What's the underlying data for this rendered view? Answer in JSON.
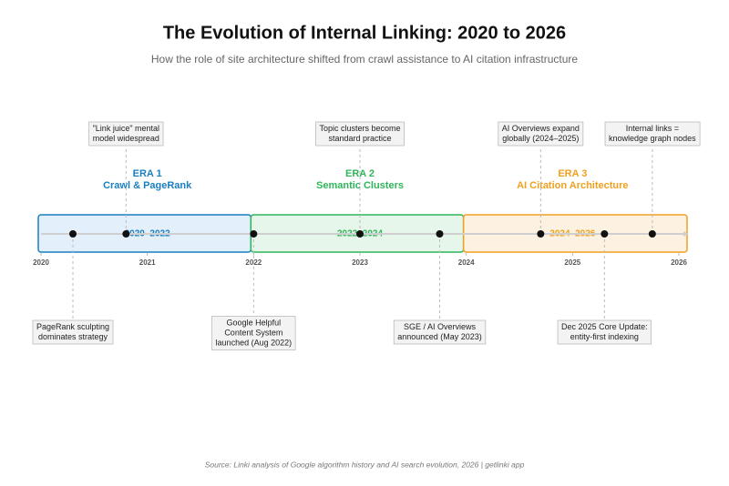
{
  "chart_data": {
    "type": "timeline",
    "title": "The Evolution of Internal Linking: 2020 to 2026",
    "subtitle": "How the role of site architecture shifted from crawl assistance to AI citation infrastructure",
    "source": "Source: Linki analysis of Google algorithm history and AI search evolution, 2026  |  getlinki app",
    "xlim": [
      2020,
      2026
    ],
    "xticks": [
      2020,
      2021,
      2022,
      2023,
      2024,
      2025,
      2026
    ],
    "eras": [
      {
        "name": "ERA 1",
        "subtitle": "Crawl & PageRank",
        "range_label": "2020–2022",
        "start": 2020,
        "end": 2022,
        "color": "#1a7fc1",
        "fill": "#e3effb"
      },
      {
        "name": "ERA 2",
        "subtitle": "Semantic Clusters",
        "range_label": "2022–2024",
        "start": 2022,
        "end": 2024,
        "color": "#2fb55a",
        "fill": "#e6f6ea"
      },
      {
        "name": "ERA 3",
        "subtitle": "AI Citation Architecture",
        "range_label": "2024–2026",
        "start": 2024,
        "end": 2026,
        "color": "#f0a020",
        "fill": "#fdf2e1"
      }
    ],
    "events": [
      {
        "x": 2020.3,
        "position": "below",
        "label": [
          "PageRank sculpting",
          "dominates strategy"
        ]
      },
      {
        "x": 2020.8,
        "position": "above",
        "label": [
          "\"Link juice\" mental",
          "model widespread"
        ]
      },
      {
        "x": 2022.0,
        "position": "below",
        "label": [
          "Google Helpful",
          "Content System",
          "launched (Aug 2022)"
        ]
      },
      {
        "x": 2023.0,
        "position": "above",
        "label": [
          "Topic clusters become",
          "standard practice"
        ]
      },
      {
        "x": 2023.75,
        "position": "below",
        "label": [
          "SGE / AI Overviews",
          "announced (May 2023)"
        ]
      },
      {
        "x": 2024.7,
        "position": "above",
        "label": [
          "AI Overviews expand",
          "globally (2024–2025)"
        ]
      },
      {
        "x": 2025.3,
        "position": "below",
        "label": [
          "Dec 2025 Core Update:",
          "entity-first indexing"
        ]
      },
      {
        "x": 2025.75,
        "position": "above",
        "label": [
          "Internal links =",
          "knowledge graph nodes"
        ]
      }
    ]
  }
}
